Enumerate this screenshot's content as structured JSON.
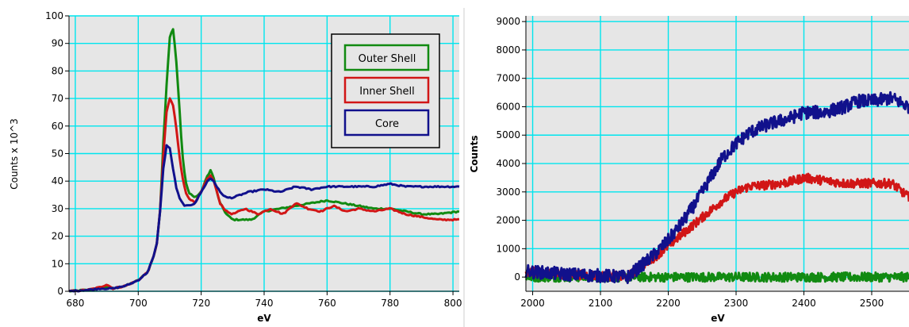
{
  "colors": {
    "plot_bg": "#e6e6e6",
    "grid": "#00e5ee",
    "outer": "#118a11",
    "inner": "#d11616",
    "core": "#11118c",
    "legend_bg": "#e6e6e6"
  },
  "chart_data": [
    {
      "type": "line",
      "title": "",
      "xlabel": "eV",
      "ylabel": "Counts x 10^3",
      "xlim": [
        678,
        802
      ],
      "ylim": [
        0,
        100
      ],
      "xticks": [
        680,
        700,
        720,
        740,
        760,
        780,
        800
      ],
      "yticks": [
        0,
        10,
        20,
        30,
        40,
        50,
        60,
        70,
        80,
        90,
        100
      ],
      "grid": true,
      "legend": {
        "position": "top-right",
        "entries": [
          "Outer Shell",
          "Inner Shell",
          "Core"
        ]
      },
      "series": [
        {
          "name": "Outer Shell",
          "color_key": "outer",
          "x": [
            678,
            684,
            688,
            690,
            692,
            696,
            700,
            703,
            705,
            706,
            707,
            708,
            709,
            710,
            711,
            712,
            713,
            714,
            715,
            716,
            718,
            720,
            722,
            723,
            724,
            725,
            726,
            728,
            730,
            732,
            736,
            740,
            745,
            750,
            755,
            760,
            765,
            770,
            775,
            780,
            785,
            790,
            795,
            802
          ],
          "y": [
            0,
            0.5,
            1,
            1.5,
            1,
            2,
            4,
            7,
            13,
            18,
            30,
            55,
            75,
            92,
            96,
            85,
            68,
            50,
            40,
            36,
            34,
            36,
            42,
            44,
            41,
            36,
            32,
            28,
            26,
            26,
            26,
            29,
            30,
            31,
            32,
            33,
            32,
            31,
            30,
            30,
            29,
            28,
            28,
            29
          ]
        },
        {
          "name": "Inner Shell",
          "color_key": "inner",
          "x": [
            678,
            684,
            688,
            690,
            692,
            696,
            700,
            703,
            705,
            706,
            707,
            708,
            709,
            710,
            711,
            712,
            713,
            714,
            715,
            716,
            718,
            720,
            722,
            723,
            724,
            725,
            726,
            728,
            730,
            734,
            738,
            742,
            746,
            750,
            754,
            758,
            762,
            766,
            770,
            775,
            780,
            785,
            790,
            795,
            802
          ],
          "y": [
            0,
            0.5,
            1.5,
            2.5,
            1,
            2,
            4,
            7,
            13,
            18,
            30,
            50,
            65,
            70,
            68,
            60,
            50,
            42,
            36,
            34,
            32,
            36,
            41,
            42,
            40,
            36,
            32,
            29,
            28,
            30,
            28,
            30,
            28,
            32,
            30,
            29,
            31,
            29,
            30,
            29,
            30,
            28,
            27,
            26,
            26
          ]
        },
        {
          "name": "Core",
          "color_key": "core",
          "x": [
            678,
            684,
            688,
            690,
            692,
            696,
            700,
            703,
            705,
            706,
            707,
            708,
            709,
            710,
            711,
            712,
            713,
            714,
            715,
            716,
            718,
            720,
            722,
            723,
            724,
            725,
            726,
            728,
            730,
            735,
            740,
            745,
            750,
            755,
            760,
            765,
            770,
            775,
            780,
            785,
            790,
            795,
            802
          ],
          "y": [
            0,
            0.5,
            1,
            1,
            1,
            2,
            4,
            7,
            13,
            18,
            30,
            45,
            53,
            52,
            45,
            38,
            34,
            32,
            31,
            31,
            32,
            36,
            40,
            41,
            40,
            38,
            36,
            34,
            34,
            36,
            37,
            36,
            38,
            37,
            38,
            38,
            38,
            38,
            39,
            38,
            38,
            38,
            38
          ]
        }
      ]
    },
    {
      "type": "line",
      "title": "",
      "xlabel": "eV",
      "ylabel": "Counts",
      "xlim": [
        1990,
        2555
      ],
      "ylim": [
        -500,
        9200
      ],
      "xticks": [
        2000,
        2100,
        2200,
        2300,
        2400,
        2500
      ],
      "yticks": [
        0,
        1000,
        2000,
        3000,
        4000,
        5000,
        6000,
        7000,
        8000,
        9000
      ],
      "grid": true,
      "legend": null,
      "series": [
        {
          "name": "Outer Shell",
          "color_key": "outer",
          "x": [
            1990,
            2100,
            2150,
            2200,
            2250,
            2300,
            2350,
            2400,
            2450,
            2500,
            2555
          ],
          "y": [
            0,
            0,
            0,
            0,
            0,
            0,
            0,
            0,
            0,
            0,
            0
          ],
          "noise": 160
        },
        {
          "name": "Inner Shell",
          "color_key": "inner",
          "x": [
            1990,
            2050,
            2100,
            2140,
            2160,
            2180,
            2200,
            2220,
            2240,
            2260,
            2280,
            2300,
            2320,
            2350,
            2380,
            2400,
            2430,
            2460,
            2500,
            2530,
            2555
          ],
          "y": [
            200,
            100,
            50,
            0,
            400,
            700,
            1100,
            1500,
            1900,
            2300,
            2700,
            3000,
            3200,
            3250,
            3350,
            3500,
            3400,
            3300,
            3300,
            3300,
            2800
          ],
          "noise": 160
        },
        {
          "name": "Core",
          "color_key": "core",
          "x": [
            1990,
            2050,
            2100,
            2140,
            2160,
            2180,
            2200,
            2220,
            2240,
            2260,
            2280,
            2300,
            2320,
            2350,
            2380,
            2400,
            2430,
            2460,
            2480,
            2500,
            2530,
            2555
          ],
          "y": [
            200,
            100,
            50,
            0,
            400,
            800,
            1300,
            1900,
            2600,
            3400,
            4200,
            4700,
            5100,
            5400,
            5600,
            5800,
            5800,
            6000,
            6200,
            6200,
            6300,
            6000
          ],
          "noise": 230
        }
      ]
    }
  ]
}
